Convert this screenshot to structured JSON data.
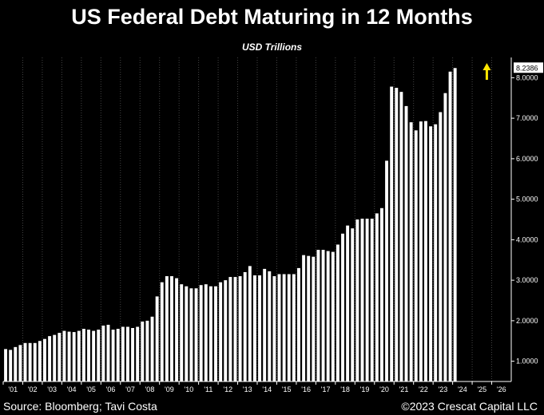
{
  "header": {
    "title": "US Federal Debt Maturing in 12 Months",
    "subtitle": "USD Trillions"
  },
  "footer": {
    "source": "Source: Bloomberg; Tavi Costa",
    "copyright": "©2023 Crescat Capital LLC"
  },
  "colors": {
    "background": "#000000",
    "bars": "#ffffff",
    "axis": "#ffffff",
    "grid": "#444444",
    "arrow": "#ffe600"
  },
  "chart_data": {
    "type": "bar",
    "title": "US Federal Debt Maturing in 12 Months",
    "ylabel": "USD Trillions",
    "ylim": [
      0.5,
      8.5
    ],
    "y_ticks": [
      "1.0000",
      "2.0000",
      "3.0000",
      "4.0000",
      "5.0000",
      "6.0000",
      "7.0000",
      "8.0000"
    ],
    "grid": "vertical dotted at years",
    "x_ticks": [
      "'01",
      "'02",
      "'03",
      "'04",
      "'05",
      "'06",
      "'07",
      "'08",
      "'09",
      "'10",
      "'11",
      "'12",
      "'13",
      "'14",
      "'15",
      "'16",
      "'17",
      "'18",
      "'19",
      "'20",
      "'21",
      "'22",
      "'23",
      "'24",
      "'25",
      "'26"
    ],
    "frequency": "quarterly",
    "start": "'01",
    "values": [
      1.3,
      1.28,
      1.35,
      1.4,
      1.45,
      1.45,
      1.45,
      1.5,
      1.55,
      1.62,
      1.65,
      1.7,
      1.75,
      1.73,
      1.72,
      1.75,
      1.8,
      1.78,
      1.75,
      1.78,
      1.88,
      1.9,
      1.78,
      1.8,
      1.85,
      1.85,
      1.82,
      1.85,
      1.98,
      2.0,
      2.1,
      2.6,
      2.95,
      3.1,
      3.1,
      3.05,
      2.9,
      2.85,
      2.8,
      2.8,
      2.88,
      2.9,
      2.85,
      2.85,
      2.95,
      3.0,
      3.08,
      3.08,
      3.1,
      3.2,
      3.35,
      3.12,
      3.12,
      3.28,
      3.22,
      3.1,
      3.15,
      3.15,
      3.15,
      3.15,
      3.3,
      3.62,
      3.6,
      3.58,
      3.75,
      3.75,
      3.72,
      3.7,
      3.88,
      4.15,
      4.35,
      4.28,
      4.5,
      4.52,
      4.52,
      4.52,
      4.65,
      4.78,
      5.95,
      7.78,
      7.75,
      7.65,
      7.3,
      6.9,
      6.7,
      6.92,
      6.93,
      6.8,
      6.85,
      7.15,
      7.62,
      8.15,
      8.2386
    ],
    "last_value_label": "8.2386",
    "annotation": "upward arrow after last bar"
  }
}
